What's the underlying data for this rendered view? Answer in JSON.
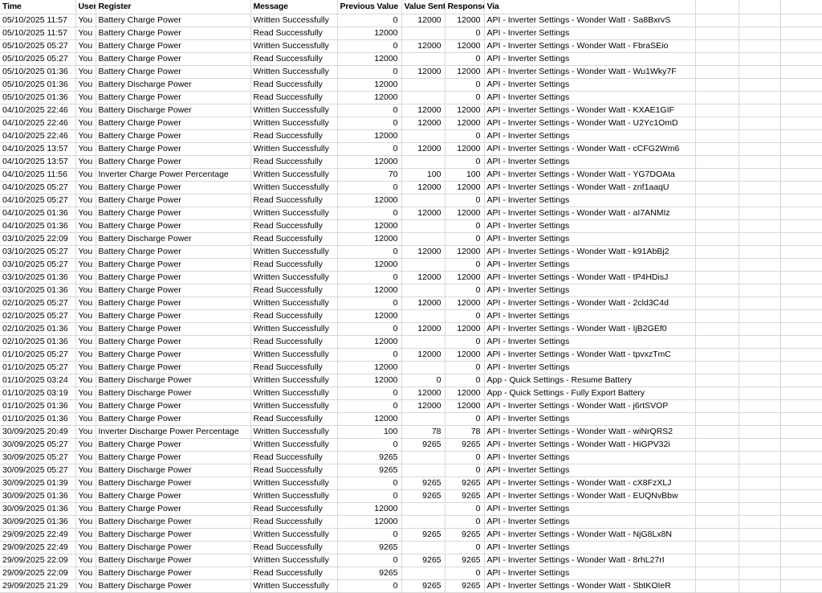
{
  "colors": {
    "grid": "#d8d8d8",
    "text": "#000000",
    "background": "#ffffff"
  },
  "table": {
    "headers": [
      "Time",
      "User",
      "Register",
      "Message",
      "Previous Value",
      "Value Sent",
      "Response",
      "Via"
    ],
    "trailing_empty_columns": 3,
    "rows": [
      [
        "05/10/2025 11:57",
        "You",
        "Battery Charge Power",
        "Written Successfully",
        "0",
        "12000",
        "12000",
        "API - Inverter Settings - Wonder Watt - Sa8BxrvS"
      ],
      [
        "05/10/2025 11:57",
        "You",
        "Battery Charge Power",
        "Read Successfully",
        "12000",
        "",
        "0",
        "API - Inverter Settings"
      ],
      [
        "05/10/2025 05:27",
        "You",
        "Battery Charge Power",
        "Written Successfully",
        "0",
        "12000",
        "12000",
        "API - Inverter Settings - Wonder Watt - FbraSEio"
      ],
      [
        "05/10/2025 05:27",
        "You",
        "Battery Charge Power",
        "Read Successfully",
        "12000",
        "",
        "0",
        "API - Inverter Settings"
      ],
      [
        "05/10/2025 01:36",
        "You",
        "Battery Charge Power",
        "Written Successfully",
        "0",
        "12000",
        "12000",
        "API - Inverter Settings - Wonder Watt - Wu1Wky7F"
      ],
      [
        "05/10/2025 01:36",
        "You",
        "Battery Discharge Power",
        "Read Successfully",
        "12000",
        "",
        "0",
        "API - Inverter Settings"
      ],
      [
        "05/10/2025 01:36",
        "You",
        "Battery Charge Power",
        "Read Successfully",
        "12000",
        "",
        "0",
        "API - Inverter Settings"
      ],
      [
        "04/10/2025 22:46",
        "You",
        "Battery Discharge Power",
        "Written Successfully",
        "0",
        "12000",
        "12000",
        "API - Inverter Settings - Wonder Watt - KXAE1GIF"
      ],
      [
        "04/10/2025 22:46",
        "You",
        "Battery Charge Power",
        "Written Successfully",
        "0",
        "12000",
        "12000",
        "API - Inverter Settings - Wonder Watt - U2Yc1OmD"
      ],
      [
        "04/10/2025 22:46",
        "You",
        "Battery Charge Power",
        "Read Successfully",
        "12000",
        "",
        "0",
        "API - Inverter Settings"
      ],
      [
        "04/10/2025 13:57",
        "You",
        "Battery Charge Power",
        "Written Successfully",
        "0",
        "12000",
        "12000",
        "API - Inverter Settings - Wonder Watt - cCFG2Wm6"
      ],
      [
        "04/10/2025 13:57",
        "You",
        "Battery Charge Power",
        "Read Successfully",
        "12000",
        "",
        "0",
        "API - Inverter Settings"
      ],
      [
        "04/10/2025 11:56",
        "You",
        "Inverter Charge Power Percentage",
        "Written Successfully",
        "70",
        "100",
        "100",
        "API - Inverter Settings - Wonder Watt - YG7DOAta"
      ],
      [
        "04/10/2025 05:27",
        "You",
        "Battery Charge Power",
        "Written Successfully",
        "0",
        "12000",
        "12000",
        "API - Inverter Settings - Wonder Watt - znf1aaqU"
      ],
      [
        "04/10/2025 05:27",
        "You",
        "Battery Charge Power",
        "Read Successfully",
        "12000",
        "",
        "0",
        "API - Inverter Settings"
      ],
      [
        "04/10/2025 01:36",
        "You",
        "Battery Charge Power",
        "Written Successfully",
        "0",
        "12000",
        "12000",
        "API - Inverter Settings - Wonder Watt - aI7ANMIz"
      ],
      [
        "04/10/2025 01:36",
        "You",
        "Battery Charge Power",
        "Read Successfully",
        "12000",
        "",
        "0",
        "API - Inverter Settings"
      ],
      [
        "03/10/2025 22:09",
        "You",
        "Battery Discharge Power",
        "Read Successfully",
        "12000",
        "",
        "0",
        "API - Inverter Settings"
      ],
      [
        "03/10/2025 05:27",
        "You",
        "Battery Charge Power",
        "Written Successfully",
        "0",
        "12000",
        "12000",
        "API - Inverter Settings - Wonder Watt - k91AbBj2"
      ],
      [
        "03/10/2025 05:27",
        "You",
        "Battery Charge Power",
        "Read Successfully",
        "12000",
        "",
        "0",
        "API - Inverter Settings"
      ],
      [
        "03/10/2025 01:36",
        "You",
        "Battery Charge Power",
        "Written Successfully",
        "0",
        "12000",
        "12000",
        "API - Inverter Settings - Wonder Watt - tP4HDisJ"
      ],
      [
        "03/10/2025 01:36",
        "You",
        "Battery Charge Power",
        "Read Successfully",
        "12000",
        "",
        "0",
        "API - Inverter Settings"
      ],
      [
        "02/10/2025 05:27",
        "You",
        "Battery Charge Power",
        "Written Successfully",
        "0",
        "12000",
        "12000",
        "API - Inverter Settings - Wonder Watt - 2cld3C4d"
      ],
      [
        "02/10/2025 05:27",
        "You",
        "Battery Charge Power",
        "Read Successfully",
        "12000",
        "",
        "0",
        "API - Inverter Settings"
      ],
      [
        "02/10/2025 01:36",
        "You",
        "Battery Charge Power",
        "Written Successfully",
        "0",
        "12000",
        "12000",
        "API - Inverter Settings - Wonder Watt - IjB2GEf0"
      ],
      [
        "02/10/2025 01:36",
        "You",
        "Battery Charge Power",
        "Read Successfully",
        "12000",
        "",
        "0",
        "API - Inverter Settings"
      ],
      [
        "01/10/2025 05:27",
        "You",
        "Battery Charge Power",
        "Written Successfully",
        "0",
        "12000",
        "12000",
        "API - Inverter Settings - Wonder Watt - tpvxzTmC"
      ],
      [
        "01/10/2025 05:27",
        "You",
        "Battery Charge Power",
        "Read Successfully",
        "12000",
        "",
        "0",
        "API - Inverter Settings"
      ],
      [
        "01/10/2025 03:24",
        "You",
        "Battery Discharge Power",
        "Written Successfully",
        "12000",
        "0",
        "0",
        "App - Quick Settings - Resume Battery"
      ],
      [
        "01/10/2025 03:19",
        "You",
        "Battery Discharge Power",
        "Written Successfully",
        "0",
        "12000",
        "12000",
        "App - Quick Settings - Fully Export Battery"
      ],
      [
        "01/10/2025 01:36",
        "You",
        "Battery Charge Power",
        "Written Successfully",
        "0",
        "12000",
        "12000",
        "API - Inverter Settings - Wonder Watt - j6rtSVOP"
      ],
      [
        "01/10/2025 01:36",
        "You",
        "Battery Charge Power",
        "Read Successfully",
        "12000",
        "",
        "0",
        "API - Inverter Settings"
      ],
      [
        "30/09/2025 20:49",
        "You",
        "Inverter Discharge Power Percentage",
        "Written Successfully",
        "100",
        "78",
        "78",
        "API - Inverter Settings - Wonder Watt - wiNrQRS2"
      ],
      [
        "30/09/2025 05:27",
        "You",
        "Battery Charge Power",
        "Written Successfully",
        "0",
        "9265",
        "9265",
        "API - Inverter Settings - Wonder Watt - HiGPV32i"
      ],
      [
        "30/09/2025 05:27",
        "You",
        "Battery Charge Power",
        "Read Successfully",
        "9265",
        "",
        "0",
        "API - Inverter Settings"
      ],
      [
        "30/09/2025 05:27",
        "You",
        "Battery Discharge Power",
        "Read Successfully",
        "9265",
        "",
        "0",
        "API - Inverter Settings"
      ],
      [
        "30/09/2025 01:39",
        "You",
        "Battery Discharge Power",
        "Written Successfully",
        "0",
        "9265",
        "9265",
        "API - Inverter Settings - Wonder Watt - cX8FzXLJ"
      ],
      [
        "30/09/2025 01:36",
        "You",
        "Battery Charge Power",
        "Written Successfully",
        "0",
        "9265",
        "9265",
        "API - Inverter Settings - Wonder Watt - EUQNvBbw"
      ],
      [
        "30/09/2025 01:36",
        "You",
        "Battery Charge Power",
        "Read Successfully",
        "12000",
        "",
        "0",
        "API - Inverter Settings"
      ],
      [
        "30/09/2025 01:36",
        "You",
        "Battery Discharge Power",
        "Read Successfully",
        "12000",
        "",
        "0",
        "API - Inverter Settings"
      ],
      [
        "29/09/2025 22:49",
        "You",
        "Battery Discharge Power",
        "Written Successfully",
        "0",
        "9265",
        "9265",
        "API - Inverter Settings - Wonder Watt - NjG8Lx8N"
      ],
      [
        "29/09/2025 22:49",
        "You",
        "Battery Discharge Power",
        "Read Successfully",
        "9265",
        "",
        "0",
        "API - Inverter Settings"
      ],
      [
        "29/09/2025 22:09",
        "You",
        "Battery Discharge Power",
        "Written Successfully",
        "0",
        "9265",
        "9265",
        "API - Inverter Settings - Wonder Watt - 8rhL27rI"
      ],
      [
        "29/09/2025 22:09",
        "You",
        "Battery Discharge Power",
        "Read Successfully",
        "9265",
        "",
        "0",
        "API - Inverter Settings"
      ],
      [
        "29/09/2025 21:29",
        "You",
        "Battery Discharge Power",
        "Written Successfully",
        "0",
        "9265",
        "9265",
        "API - Inverter Settings - Wonder Watt - SbtKOIeR"
      ]
    ]
  }
}
